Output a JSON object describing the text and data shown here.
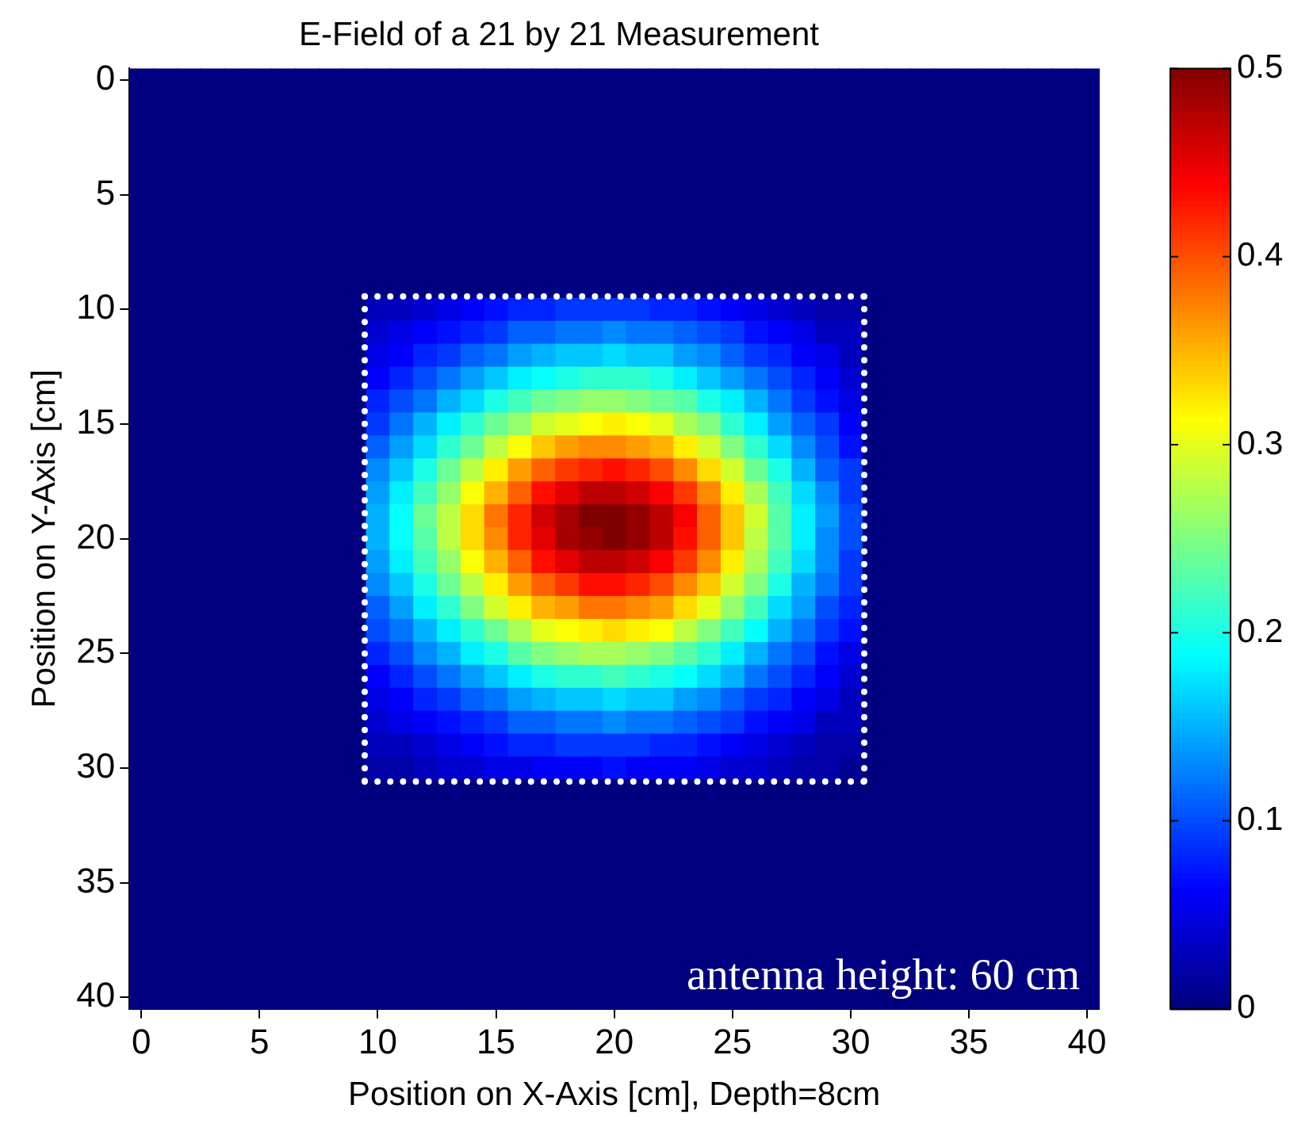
{
  "chart_data": {
    "type": "heatmap",
    "title": "E-Field of a 21 by 21 Measurement",
    "xlabel": "Position on X-Axis [cm], Depth=8cm",
    "ylabel": "Position on Y-Axis [cm]",
    "annotations": [
      "antenna height: 60 cm"
    ],
    "categories": [
      "0",
      null,
      null,
      null,
      null,
      "5",
      null,
      null,
      null,
      null,
      "10",
      null,
      null,
      null,
      null,
      "15",
      null,
      null,
      null,
      null,
      "20",
      null,
      null,
      null,
      null,
      "25",
      null,
      null,
      null,
      null,
      "30",
      null,
      null,
      null,
      null,
      "35",
      null,
      null,
      null,
      null,
      "40"
    ],
    "y_categories": [
      "0",
      null,
      null,
      null,
      null,
      "5",
      null,
      null,
      null,
      null,
      "10",
      null,
      null,
      null,
      null,
      "15",
      null,
      null,
      null,
      null,
      "20",
      null,
      null,
      null,
      null,
      "25",
      null,
      null,
      null,
      null,
      "30",
      null,
      null,
      null,
      null,
      "35",
      null,
      null,
      null,
      null,
      "40"
    ],
    "clim": [
      0,
      0.5
    ],
    "cticks": [
      0,
      0.1,
      0.2,
      0.3,
      0.4,
      0.5
    ],
    "cells": [
      [
        0,
        0,
        0,
        0,
        0,
        0,
        0,
        0,
        0,
        0,
        0,
        0,
        0,
        0,
        0,
        0,
        0,
        0,
        0,
        0,
        0,
        0,
        0,
        0,
        0,
        0,
        0,
        0,
        0,
        0,
        0,
        0,
        0,
        0,
        0,
        0,
        0,
        0,
        0,
        0,
        0
      ],
      [
        0,
        0,
        0,
        0,
        0,
        0,
        0,
        0,
        0,
        0,
        0,
        0,
        0,
        0,
        0,
        0,
        0,
        0,
        0,
        0,
        0,
        0,
        0,
        0,
        0,
        0,
        0,
        0,
        0,
        0,
        0,
        0,
        0,
        0,
        0,
        0,
        0,
        0,
        0,
        0,
        0
      ],
      [
        0,
        0,
        0,
        0,
        0,
        0,
        0,
        0,
        0,
        0,
        0,
        0,
        0,
        0,
        0,
        0,
        0,
        0,
        0,
        0,
        0,
        0,
        0,
        0,
        0,
        0,
        0,
        0,
        0,
        0,
        0,
        0,
        0,
        0,
        0,
        0,
        0,
        0,
        0,
        0,
        0
      ],
      [
        0,
        0,
        0,
        0,
        0,
        0,
        0,
        0,
        0,
        0,
        0,
        0,
        0,
        0,
        0,
        0,
        0,
        0,
        0,
        0,
        0,
        0,
        0,
        0,
        0,
        0,
        0,
        0,
        0,
        0,
        0,
        0,
        0,
        0,
        0,
        0,
        0,
        0,
        0,
        0,
        0
      ],
      [
        0,
        0,
        0,
        0,
        0,
        0,
        0,
        0,
        0,
        0,
        0,
        0,
        0,
        0,
        0,
        0,
        0,
        0,
        0,
        0,
        0,
        0,
        0,
        0,
        0,
        0,
        0,
        0,
        0,
        0,
        0,
        0,
        0,
        0,
        0,
        0,
        0,
        0,
        0,
        0,
        0
      ],
      [
        0,
        0,
        0,
        0,
        0,
        0,
        0,
        0,
        0,
        0,
        0,
        0,
        0,
        0,
        0,
        0,
        0,
        0,
        0,
        0,
        0,
        0,
        0,
        0,
        0,
        0,
        0,
        0,
        0,
        0,
        0,
        0,
        0,
        0,
        0,
        0,
        0,
        0,
        0,
        0,
        0
      ],
      [
        0,
        0,
        0,
        0,
        0,
        0,
        0,
        0,
        0,
        0,
        0,
        0,
        0,
        0,
        0,
        0,
        0,
        0,
        0,
        0,
        0,
        0,
        0,
        0,
        0,
        0,
        0,
        0,
        0,
        0,
        0,
        0,
        0,
        0,
        0,
        0,
        0,
        0,
        0,
        0,
        0
      ],
      [
        0,
        0,
        0,
        0,
        0,
        0,
        0,
        0,
        0,
        0,
        0,
        0,
        0,
        0,
        0,
        0,
        0,
        0,
        0,
        0,
        0,
        0,
        0,
        0,
        0,
        0,
        0,
        0,
        0,
        0,
        0,
        0,
        0,
        0,
        0,
        0,
        0,
        0,
        0,
        0,
        0
      ],
      [
        0,
        0,
        0,
        0,
        0,
        0,
        0,
        0,
        0,
        0,
        0,
        0,
        0,
        0,
        0,
        0,
        0,
        0,
        0,
        0,
        0,
        0,
        0,
        0,
        0,
        0,
        0,
        0,
        0,
        0,
        0,
        0,
        0,
        0,
        0,
        0,
        0,
        0,
        0,
        0,
        0
      ],
      [
        0,
        0,
        0,
        0,
        0,
        0,
        0,
        0,
        0,
        0,
        0,
        0,
        0,
        0,
        0,
        0,
        0,
        0,
        0,
        0,
        0,
        0,
        0,
        0,
        0,
        0,
        0,
        0,
        0,
        0,
        0,
        0,
        0,
        0,
        0,
        0,
        0,
        0,
        0,
        0,
        0
      ],
      [
        0,
        0,
        0,
        0,
        0,
        0,
        0,
        0,
        0,
        0,
        0.03,
        0.03,
        0.04,
        0.05,
        0.06,
        0.07,
        0.08,
        0.08,
        0.09,
        0.09,
        0.09,
        0.09,
        0.08,
        0.08,
        0.07,
        0.06,
        0.05,
        0.04,
        0.03,
        0.02,
        0.02,
        0,
        0,
        0,
        0,
        0,
        0,
        0,
        0,
        0,
        0
      ],
      [
        0,
        0,
        0,
        0,
        0,
        0,
        0,
        0,
        0,
        0,
        0.04,
        0.05,
        0.06,
        0.07,
        0.08,
        0.09,
        0.11,
        0.11,
        0.12,
        0.12,
        0.13,
        0.12,
        0.12,
        0.11,
        0.1,
        0.09,
        0.07,
        0.06,
        0.05,
        0.03,
        0.03,
        0,
        0,
        0,
        0,
        0,
        0,
        0,
        0,
        0,
        0
      ],
      [
        0,
        0,
        0,
        0,
        0,
        0,
        0,
        0,
        0,
        0,
        0.05,
        0.06,
        0.08,
        0.09,
        0.11,
        0.12,
        0.14,
        0.15,
        0.16,
        0.16,
        0.17,
        0.16,
        0.16,
        0.14,
        0.13,
        0.11,
        0.09,
        0.08,
        0.06,
        0.05,
        0.03,
        0,
        0,
        0,
        0,
        0,
        0,
        0,
        0,
        0,
        0
      ],
      [
        0,
        0,
        0,
        0,
        0,
        0,
        0,
        0,
        0,
        0,
        0.06,
        0.08,
        0.1,
        0.12,
        0.14,
        0.16,
        0.18,
        0.19,
        0.2,
        0.21,
        0.21,
        0.21,
        0.2,
        0.18,
        0.16,
        0.14,
        0.12,
        0.1,
        0.08,
        0.06,
        0.04,
        0,
        0,
        0,
        0,
        0,
        0,
        0,
        0,
        0,
        0
      ],
      [
        0,
        0,
        0,
        0,
        0,
        0,
        0,
        0,
        0,
        0,
        0.08,
        0.1,
        0.12,
        0.15,
        0.17,
        0.2,
        0.22,
        0.24,
        0.25,
        0.26,
        0.26,
        0.25,
        0.24,
        0.23,
        0.2,
        0.18,
        0.15,
        0.12,
        0.09,
        0.07,
        0.05,
        0,
        0,
        0,
        0,
        0,
        0,
        0,
        0,
        0,
        0
      ],
      [
        0,
        0,
        0,
        0,
        0,
        0,
        0,
        0,
        0,
        0,
        0.09,
        0.12,
        0.15,
        0.18,
        0.21,
        0.24,
        0.26,
        0.29,
        0.3,
        0.31,
        0.32,
        0.31,
        0.3,
        0.27,
        0.25,
        0.21,
        0.18,
        0.14,
        0.11,
        0.09,
        0.06,
        0,
        0,
        0,
        0,
        0,
        0,
        0,
        0,
        0,
        0
      ],
      [
        0,
        0,
        0,
        0,
        0,
        0,
        0,
        0,
        0,
        0,
        0.11,
        0.14,
        0.17,
        0.21,
        0.24,
        0.28,
        0.31,
        0.34,
        0.36,
        0.37,
        0.37,
        0.36,
        0.35,
        0.32,
        0.29,
        0.25,
        0.21,
        0.17,
        0.13,
        0.1,
        0.07,
        0,
        0,
        0,
        0,
        0,
        0,
        0,
        0,
        0,
        0
      ],
      [
        0,
        0,
        0,
        0,
        0,
        0,
        0,
        0,
        0,
        0,
        0.13,
        0.16,
        0.2,
        0.24,
        0.28,
        0.32,
        0.36,
        0.39,
        0.41,
        0.42,
        0.43,
        0.42,
        0.4,
        0.37,
        0.33,
        0.29,
        0.24,
        0.2,
        0.15,
        0.11,
        0.09,
        0,
        0,
        0,
        0,
        0,
        0,
        0,
        0,
        0,
        0
      ],
      [
        0,
        0,
        0,
        0,
        0,
        0,
        0,
        0,
        0,
        0,
        0.14,
        0.18,
        0.22,
        0.26,
        0.31,
        0.35,
        0.39,
        0.43,
        0.45,
        0.47,
        0.47,
        0.46,
        0.44,
        0.41,
        0.37,
        0.32,
        0.27,
        0.22,
        0.17,
        0.13,
        0.09,
        0,
        0,
        0,
        0,
        0,
        0,
        0,
        0,
        0,
        0
      ],
      [
        0,
        0,
        0,
        0,
        0,
        0,
        0,
        0,
        0,
        0,
        0.15,
        0.19,
        0.24,
        0.28,
        0.33,
        0.38,
        0.42,
        0.46,
        0.48,
        0.5,
        0.5,
        0.49,
        0.47,
        0.44,
        0.39,
        0.34,
        0.29,
        0.23,
        0.18,
        0.14,
        0.1,
        0,
        0,
        0,
        0,
        0,
        0,
        0,
        0,
        0,
        0
      ],
      [
        0,
        0,
        0,
        0,
        0,
        0,
        0,
        0,
        0,
        0,
        0.15,
        0.19,
        0.23,
        0.28,
        0.33,
        0.37,
        0.42,
        0.45,
        0.48,
        0.49,
        0.5,
        0.49,
        0.47,
        0.43,
        0.39,
        0.34,
        0.28,
        0.23,
        0.18,
        0.13,
        0.1,
        0,
        0,
        0,
        0,
        0,
        0,
        0,
        0,
        0,
        0
      ],
      [
        0,
        0,
        0,
        0,
        0,
        0,
        0,
        0,
        0,
        0,
        0.14,
        0.18,
        0.22,
        0.26,
        0.31,
        0.35,
        0.39,
        0.43,
        0.45,
        0.47,
        0.47,
        0.46,
        0.44,
        0.41,
        0.37,
        0.32,
        0.27,
        0.22,
        0.17,
        0.13,
        0.09,
        0,
        0,
        0,
        0,
        0,
        0,
        0,
        0,
        0,
        0
      ],
      [
        0,
        0,
        0,
        0,
        0,
        0,
        0,
        0,
        0,
        0,
        0.13,
        0.16,
        0.2,
        0.24,
        0.28,
        0.32,
        0.36,
        0.39,
        0.41,
        0.43,
        0.43,
        0.42,
        0.4,
        0.37,
        0.34,
        0.29,
        0.25,
        0.2,
        0.15,
        0.12,
        0.09,
        0,
        0,
        0,
        0,
        0,
        0,
        0,
        0,
        0,
        0
      ],
      [
        0,
        0,
        0,
        0,
        0,
        0,
        0,
        0,
        0,
        0,
        0.11,
        0.14,
        0.18,
        0.21,
        0.25,
        0.29,
        0.32,
        0.35,
        0.36,
        0.38,
        0.38,
        0.37,
        0.36,
        0.33,
        0.3,
        0.26,
        0.22,
        0.17,
        0.14,
        0.1,
        0.08,
        0,
        0,
        0,
        0,
        0,
        0,
        0,
        0,
        0,
        0
      ],
      [
        0,
        0,
        0,
        0,
        0,
        0,
        0,
        0,
        0,
        0,
        0.1,
        0.12,
        0.15,
        0.18,
        0.21,
        0.24,
        0.27,
        0.3,
        0.31,
        0.32,
        0.33,
        0.32,
        0.31,
        0.28,
        0.25,
        0.22,
        0.19,
        0.15,
        0.12,
        0.09,
        0.07,
        0,
        0,
        0,
        0,
        0,
        0,
        0,
        0,
        0,
        0
      ],
      [
        0,
        0,
        0,
        0,
        0,
        0,
        0,
        0,
        0,
        0,
        0.08,
        0.1,
        0.13,
        0.15,
        0.18,
        0.2,
        0.23,
        0.25,
        0.26,
        0.27,
        0.27,
        0.26,
        0.25,
        0.23,
        0.21,
        0.18,
        0.15,
        0.12,
        0.1,
        0.07,
        0.05,
        0,
        0,
        0,
        0,
        0,
        0,
        0,
        0,
        0,
        0
      ],
      [
        0,
        0,
        0,
        0,
        0,
        0,
        0,
        0,
        0,
        0,
        0.06,
        0.08,
        0.1,
        0.12,
        0.14,
        0.16,
        0.18,
        0.2,
        0.21,
        0.21,
        0.22,
        0.21,
        0.2,
        0.19,
        0.17,
        0.15,
        0.12,
        0.1,
        0.08,
        0.06,
        0.04,
        0,
        0,
        0,
        0,
        0,
        0,
        0,
        0,
        0,
        0
      ],
      [
        0,
        0,
        0,
        0,
        0,
        0,
        0,
        0,
        0,
        0,
        0.05,
        0.06,
        0.08,
        0.09,
        0.11,
        0.12,
        0.14,
        0.15,
        0.16,
        0.16,
        0.17,
        0.16,
        0.16,
        0.14,
        0.13,
        0.11,
        0.09,
        0.08,
        0.06,
        0.05,
        0.03,
        0,
        0,
        0,
        0,
        0,
        0,
        0,
        0,
        0,
        0
      ],
      [
        0,
        0,
        0,
        0,
        0,
        0,
        0,
        0,
        0,
        0,
        0.04,
        0.05,
        0.06,
        0.07,
        0.08,
        0.09,
        0.11,
        0.11,
        0.12,
        0.12,
        0.13,
        0.12,
        0.12,
        0.11,
        0.1,
        0.09,
        0.07,
        0.06,
        0.05,
        0.03,
        0.03,
        0,
        0,
        0,
        0,
        0,
        0,
        0,
        0,
        0,
        0
      ],
      [
        0,
        0,
        0,
        0,
        0,
        0,
        0,
        0,
        0,
        0,
        0.03,
        0.03,
        0.04,
        0.05,
        0.06,
        0.07,
        0.08,
        0.08,
        0.09,
        0.09,
        0.09,
        0.09,
        0.08,
        0.08,
        0.07,
        0.06,
        0.05,
        0.04,
        0.03,
        0.02,
        0.02,
        0,
        0,
        0,
        0,
        0,
        0,
        0,
        0,
        0,
        0
      ],
      [
        0,
        0,
        0,
        0,
        0,
        0,
        0,
        0,
        0,
        0,
        0.02,
        0.02,
        0.03,
        0.04,
        0.04,
        0.05,
        0.05,
        0.06,
        0.06,
        0.06,
        0.07,
        0.06,
        0.06,
        0.06,
        0.05,
        0.04,
        0.04,
        0.03,
        0.02,
        0.02,
        0.01,
        0,
        0,
        0,
        0,
        0,
        0,
        0,
        0,
        0,
        0
      ],
      [
        0,
        0,
        0,
        0,
        0,
        0,
        0,
        0,
        0,
        0,
        0,
        0,
        0,
        0,
        0,
        0,
        0,
        0,
        0,
        0,
        0,
        0,
        0,
        0,
        0,
        0,
        0,
        0,
        0,
        0,
        0,
        0,
        0,
        0,
        0,
        0,
        0,
        0,
        0,
        0,
        0
      ],
      [
        0,
        0,
        0,
        0,
        0,
        0,
        0,
        0,
        0,
        0,
        0,
        0,
        0,
        0,
        0,
        0,
        0,
        0,
        0,
        0,
        0,
        0,
        0,
        0,
        0,
        0,
        0,
        0,
        0,
        0,
        0,
        0,
        0,
        0,
        0,
        0,
        0,
        0,
        0,
        0,
        0
      ],
      [
        0,
        0,
        0,
        0,
        0,
        0,
        0,
        0,
        0,
        0,
        0,
        0,
        0,
        0,
        0,
        0,
        0,
        0,
        0,
        0,
        0,
        0,
        0,
        0,
        0,
        0,
        0,
        0,
        0,
        0,
        0,
        0,
        0,
        0,
        0,
        0,
        0,
        0,
        0,
        0,
        0
      ],
      [
        0,
        0,
        0,
        0,
        0,
        0,
        0,
        0,
        0,
        0,
        0,
        0,
        0,
        0,
        0,
        0,
        0,
        0,
        0,
        0,
        0,
        0,
        0,
        0,
        0,
        0,
        0,
        0,
        0,
        0,
        0,
        0,
        0,
        0,
        0,
        0,
        0,
        0,
        0,
        0,
        0
      ],
      [
        0,
        0,
        0,
        0,
        0,
        0,
        0,
        0,
        0,
        0,
        0,
        0,
        0,
        0,
        0,
        0,
        0,
        0,
        0,
        0,
        0,
        0,
        0,
        0,
        0,
        0,
        0,
        0,
        0,
        0,
        0,
        0,
        0,
        0,
        0,
        0,
        0,
        0,
        0,
        0,
        0
      ],
      [
        0,
        0,
        0,
        0,
        0,
        0,
        0,
        0,
        0,
        0,
        0,
        0,
        0,
        0,
        0,
        0,
        0,
        0,
        0,
        0,
        0,
        0,
        0,
        0,
        0,
        0,
        0,
        0,
        0,
        0,
        0,
        0,
        0,
        0,
        0,
        0,
        0,
        0,
        0,
        0,
        0
      ],
      [
        0,
        0,
        0,
        0,
        0,
        0,
        0,
        0,
        0,
        0,
        0,
        0,
        0,
        0,
        0,
        0,
        0,
        0,
        0,
        0,
        0,
        0,
        0,
        0,
        0,
        0,
        0,
        0,
        0,
        0,
        0,
        0,
        0,
        0,
        0,
        0,
        0,
        0,
        0,
        0,
        0
      ],
      [
        0,
        0,
        0,
        0,
        0,
        0,
        0,
        0,
        0,
        0,
        0,
        0,
        0,
        0,
        0,
        0,
        0,
        0,
        0,
        0,
        0,
        0,
        0,
        0,
        0,
        0,
        0,
        0,
        0,
        0,
        0,
        0,
        0,
        0,
        0,
        0,
        0,
        0,
        0,
        0,
        0
      ],
      [
        0,
        0,
        0,
        0,
        0,
        0,
        0,
        0,
        0,
        0,
        0,
        0,
        0,
        0,
        0,
        0,
        0,
        0,
        0,
        0,
        0,
        0,
        0,
        0,
        0,
        0,
        0,
        0,
        0,
        0,
        0,
        0,
        0,
        0,
        0,
        0,
        0,
        0,
        0,
        0,
        0
      ],
      [
        0,
        0,
        0,
        0,
        0,
        0,
        0,
        0,
        0,
        0,
        0,
        0,
        0,
        0,
        0,
        0,
        0,
        0,
        0,
        0,
        0,
        0,
        0,
        0,
        0,
        0,
        0,
        0,
        0,
        0,
        0,
        0,
        0,
        0,
        0,
        0,
        0,
        0,
        0,
        0,
        0
      ]
    ]
  }
}
